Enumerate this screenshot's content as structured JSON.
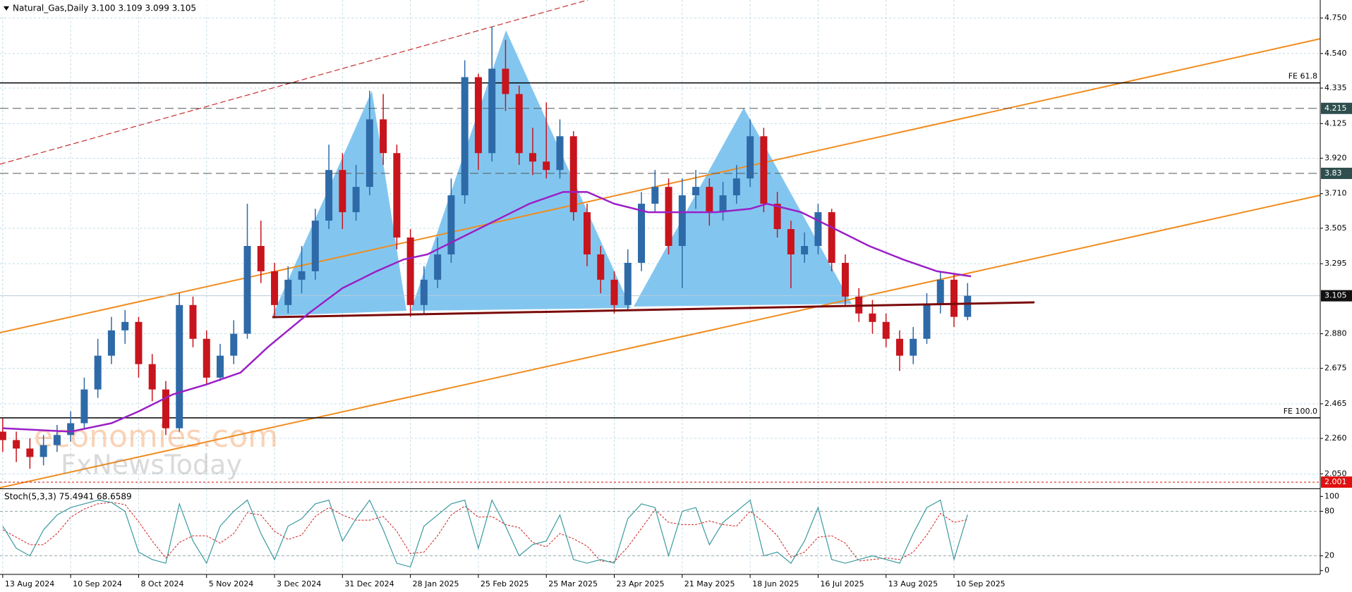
{
  "chart_data": {
    "type": "candlestick",
    "title": "Natural_Gas,Daily  3.100 3.109 3.099 3.105",
    "watermark": [
      "economies.com",
      "FxNewsToday"
    ],
    "xlim": [
      -0.8,
      387.8
    ],
    "ylim": [
      1.968,
      4.857
    ],
    "grid": true,
    "up_color": "#2e6aa8",
    "down_color": "#c8141c",
    "x": [
      0,
      4,
      8,
      12,
      16,
      20,
      24,
      28,
      32,
      36,
      40,
      44,
      48,
      52,
      56,
      60,
      64,
      68,
      72,
      76,
      80,
      84,
      88,
      92,
      96,
      100,
      104,
      108,
      112,
      116,
      120,
      124,
      128,
      132,
      136,
      140,
      144,
      148,
      152,
      156,
      160,
      164,
      168,
      172,
      176,
      180,
      184,
      188,
      192,
      196,
      200,
      204,
      208,
      212,
      216,
      220,
      224,
      228,
      232,
      236,
      240,
      244,
      248,
      252,
      256,
      260,
      264,
      268,
      272,
      276,
      280,
      284
    ],
    "candles": [
      [
        2.3,
        2.38,
        2.18,
        2.25
      ],
      [
        2.25,
        2.3,
        2.12,
        2.2
      ],
      [
        2.2,
        2.26,
        2.08,
        2.15
      ],
      [
        2.15,
        2.28,
        2.1,
        2.22
      ],
      [
        2.22,
        2.34,
        2.18,
        2.28
      ],
      [
        2.28,
        2.42,
        2.24,
        2.35
      ],
      [
        2.35,
        2.62,
        2.32,
        2.55
      ],
      [
        2.55,
        2.85,
        2.5,
        2.75
      ],
      [
        2.75,
        2.98,
        2.7,
        2.9
      ],
      [
        2.9,
        3.02,
        2.82,
        2.95
      ],
      [
        2.95,
        2.98,
        2.62,
        2.7
      ],
      [
        2.7,
        2.76,
        2.48,
        2.55
      ],
      [
        2.55,
        2.6,
        2.28,
        2.32
      ],
      [
        2.32,
        3.12,
        2.3,
        3.05
      ],
      [
        3.05,
        3.1,
        2.8,
        2.85
      ],
      [
        2.85,
        2.9,
        2.58,
        2.62
      ],
      [
        2.62,
        2.82,
        2.6,
        2.75
      ],
      [
        2.75,
        2.96,
        2.7,
        2.88
      ],
      [
        2.88,
        3.65,
        2.85,
        3.4
      ],
      [
        3.4,
        3.55,
        3.18,
        3.25
      ],
      [
        3.25,
        3.3,
        2.98,
        3.05
      ],
      [
        3.05,
        3.28,
        3.0,
        3.2
      ],
      [
        3.2,
        3.4,
        3.12,
        3.25
      ],
      [
        3.25,
        3.62,
        3.2,
        3.55
      ],
      [
        3.55,
        4.0,
        3.5,
        3.85
      ],
      [
        3.85,
        3.95,
        3.5,
        3.6
      ],
      [
        3.6,
        3.88,
        3.55,
        3.75
      ],
      [
        3.75,
        4.32,
        3.7,
        4.15
      ],
      [
        4.15,
        4.3,
        3.88,
        3.95
      ],
      [
        3.95,
        4.0,
        3.38,
        3.45
      ],
      [
        3.45,
        3.5,
        2.98,
        3.05
      ],
      [
        3.05,
        3.28,
        3.0,
        3.2
      ],
      [
        3.2,
        3.45,
        3.15,
        3.35
      ],
      [
        3.35,
        3.8,
        3.3,
        3.7
      ],
      [
        3.7,
        4.5,
        3.65,
        4.4
      ],
      [
        4.4,
        4.42,
        3.85,
        3.95
      ],
      [
        3.95,
        4.7,
        3.9,
        4.45
      ],
      [
        4.45,
        4.62,
        4.2,
        4.3
      ],
      [
        4.3,
        4.35,
        3.88,
        3.95
      ],
      [
        3.95,
        4.1,
        3.82,
        3.9
      ],
      [
        3.9,
        4.25,
        3.8,
        3.85
      ],
      [
        3.85,
        4.15,
        3.8,
        4.05
      ],
      [
        4.05,
        4.08,
        3.55,
        3.6
      ],
      [
        3.6,
        3.65,
        3.28,
        3.35
      ],
      [
        3.35,
        3.4,
        3.12,
        3.2
      ],
      [
        3.2,
        3.25,
        3.0,
        3.05
      ],
      [
        3.05,
        3.38,
        3.02,
        3.3
      ],
      [
        3.3,
        3.72,
        3.25,
        3.65
      ],
      [
        3.65,
        3.85,
        3.6,
        3.75
      ],
      [
        3.75,
        3.8,
        3.35,
        3.4
      ],
      [
        3.4,
        3.8,
        3.15,
        3.7
      ],
      [
        3.7,
        3.85,
        3.62,
        3.75
      ],
      [
        3.75,
        3.8,
        3.52,
        3.6
      ],
      [
        3.6,
        3.78,
        3.55,
        3.7
      ],
      [
        3.7,
        3.88,
        3.65,
        3.8
      ],
      [
        3.8,
        4.15,
        3.75,
        4.05
      ],
      [
        4.05,
        4.1,
        3.6,
        3.65
      ],
      [
        3.65,
        3.72,
        3.45,
        3.5
      ],
      [
        3.5,
        3.55,
        3.15,
        3.35
      ],
      [
        3.35,
        3.48,
        3.3,
        3.4
      ],
      [
        3.4,
        3.65,
        3.35,
        3.6
      ],
      [
        3.6,
        3.62,
        3.25,
        3.3
      ],
      [
        3.3,
        3.35,
        3.05,
        3.1
      ],
      [
        3.1,
        3.15,
        2.95,
        3.0
      ],
      [
        3.0,
        3.08,
        2.88,
        2.95
      ],
      [
        2.95,
        3.0,
        2.8,
        2.85
      ],
      [
        2.85,
        2.9,
        2.66,
        2.75
      ],
      [
        2.75,
        2.92,
        2.7,
        2.85
      ],
      [
        2.85,
        3.12,
        2.82,
        3.05
      ],
      [
        3.05,
        3.25,
        3.0,
        3.2
      ],
      [
        3.2,
        3.24,
        2.92,
        2.98
      ],
      [
        2.98,
        3.18,
        2.96,
        3.105
      ]
    ],
    "ma": {
      "color": "#9b1fc6",
      "x": [
        0,
        20,
        32,
        40,
        50,
        60,
        70,
        78,
        90,
        100,
        110,
        118,
        125,
        135,
        145,
        155,
        165,
        172,
        180,
        190,
        200,
        210,
        220,
        225,
        235,
        245,
        255,
        265,
        275,
        285
      ],
      "values": [
        2.32,
        2.3,
        2.35,
        2.42,
        2.52,
        2.58,
        2.65,
        2.8,
        3.0,
        3.15,
        3.25,
        3.32,
        3.35,
        3.45,
        3.55,
        3.65,
        3.72,
        3.72,
        3.65,
        3.6,
        3.6,
        3.6,
        3.62,
        3.65,
        3.6,
        3.5,
        3.4,
        3.32,
        3.25,
        3.22
      ]
    },
    "yticks": [
      {
        "value": 4.75,
        "label": "4.750"
      },
      {
        "value": 4.54,
        "label": "4.540"
      },
      {
        "value": 4.335,
        "label": "4.335"
      },
      {
        "value": 4.125,
        "label": "4.125"
      },
      {
        "value": 3.92,
        "label": "3.920"
      },
      {
        "value": 3.71,
        "label": "3.710"
      },
      {
        "value": 3.505,
        "label": "3.505"
      },
      {
        "value": 3.295,
        "label": "3.295"
      },
      {
        "value": 2.88,
        "label": "2.880"
      },
      {
        "value": 2.675,
        "label": "2.675"
      },
      {
        "value": 2.465,
        "label": "2.465"
      },
      {
        "value": 2.26,
        "label": "2.260"
      },
      {
        "value": 2.05,
        "label": "2.050"
      }
    ],
    "xticks": [
      {
        "value": 0,
        "label": "13 Aug 2024"
      },
      {
        "value": 20,
        "label": "10 Sep 2024"
      },
      {
        "value": 40,
        "label": "8 Oct 2024"
      },
      {
        "value": 60,
        "label": "5 Nov 2024"
      },
      {
        "value": 80,
        "label": "3 Dec 2024"
      },
      {
        "value": 100,
        "label": "31 Dec 2024"
      },
      {
        "value": 120,
        "label": "28 Jan 2025"
      },
      {
        "value": 140,
        "label": "25 Feb 2025"
      },
      {
        "value": 160,
        "label": "25 Mar 2025"
      },
      {
        "value": 180,
        "label": "23 Apr 2025"
      },
      {
        "value": 200,
        "label": "21 May 2025"
      },
      {
        "value": 220,
        "label": "18 Jun 2025"
      },
      {
        "value": 240,
        "label": "16 Jul 2025"
      },
      {
        "value": 260,
        "label": "13 Aug 2025"
      },
      {
        "value": 280,
        "label": "10 Sep 2025"
      }
    ],
    "levels": [
      {
        "value": 4.366,
        "label": "FE 61.8",
        "style": "solid",
        "color": "#000000"
      },
      {
        "value": 2.382,
        "label": "FE 100.0",
        "style": "solid",
        "color": "#000000"
      },
      {
        "value": 4.215,
        "style": "dashed",
        "color": "#555555",
        "badge": "#2f4f4f"
      },
      {
        "value": 3.83,
        "style": "dashed",
        "color": "#555555",
        "badge": "#2f4f4f"
      },
      {
        "value": 3.105,
        "style": "solid",
        "color": "#b8ccd8",
        "badge": "#111111"
      },
      {
        "value": 2.001,
        "style": "dotted",
        "color": "#d01010",
        "badge": "#e01010"
      }
    ],
    "stochastic": {
      "title": "Stoch(5,3,3) 75.4941 68.6589",
      "ylim": [
        -4.65,
        109.3
      ],
      "yticks": [
        100,
        80,
        20,
        0
      ],
      "k_color": "#3a9aa0",
      "d_color": "#d02020",
      "k": [
        60,
        30,
        20,
        55,
        75,
        85,
        90,
        95,
        92,
        80,
        25,
        15,
        10,
        90,
        40,
        10,
        60,
        80,
        95,
        50,
        15,
        60,
        70,
        90,
        95,
        40,
        70,
        95,
        55,
        10,
        5,
        60,
        75,
        90,
        95,
        30,
        95,
        60,
        20,
        35,
        40,
        75,
        15,
        10,
        15,
        10,
        70,
        90,
        85,
        20,
        80,
        85,
        35,
        65,
        80,
        95,
        20,
        25,
        10,
        40,
        85,
        15,
        10,
        15,
        20,
        15,
        10,
        50,
        85,
        95,
        15,
        75.4941
      ],
      "d": [
        55,
        45,
        35,
        35,
        50,
        72,
        83,
        90,
        92,
        89,
        66,
        40,
        17,
        38,
        47,
        47,
        37,
        50,
        78,
        75,
        53,
        42,
        48,
        73,
        85,
        75,
        68,
        68,
        73,
        53,
        23,
        25,
        47,
        75,
        87,
        72,
        73,
        62,
        58,
        38,
        32,
        50,
        43,
        33,
        13,
        12,
        32,
        57,
        82,
        65,
        62,
        62,
        67,
        62,
        60,
        80,
        65,
        47,
        18,
        25,
        45,
        47,
        37,
        13,
        15,
        17,
        15,
        25,
        48,
        77,
        65,
        68.6589
      ]
    }
  }
}
